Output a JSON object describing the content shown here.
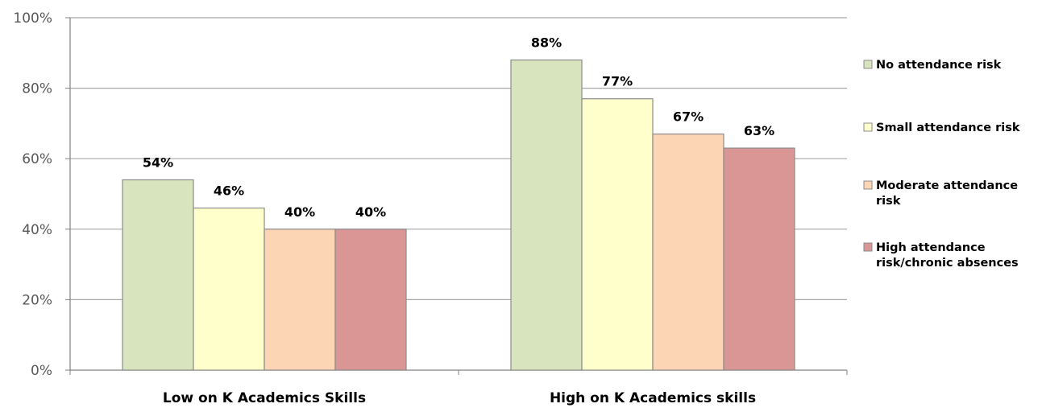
{
  "chart_data": {
    "type": "bar",
    "categories": [
      "Low on K Academics Skills",
      "High on K Academics skills"
    ],
    "series": [
      {
        "name": "No attendance risk",
        "values": [
          54,
          88
        ],
        "color": "#d7e4bd"
      },
      {
        "name": "Small attendance risk",
        "values": [
          46,
          77
        ],
        "color": "#ffffcc"
      },
      {
        "name": "Moderate attendance risk",
        "values": [
          40,
          67
        ],
        "color": "#fcd5b5"
      },
      {
        "name": "High attendance risk/chronic absences",
        "values": [
          40,
          63
        ],
        "color": "#d99694"
      }
    ],
    "data_labels": [
      [
        "54%",
        "88%"
      ],
      [
        "46%",
        "77%"
      ],
      [
        "40%",
        "67%"
      ],
      [
        "40%",
        "63%"
      ]
    ],
    "y_ticks": [
      "0%",
      "20%",
      "40%",
      "60%",
      "80%",
      "100%"
    ],
    "ylim": [
      0,
      100
    ],
    "grid": true,
    "legend_position": "right",
    "legend_labels": [
      [
        "No attendance risk"
      ],
      [
        "Small attendance risk"
      ],
      [
        "Moderate attendance",
        "risk"
      ],
      [
        "High attendance",
        "risk/chronic absences"
      ]
    ]
  }
}
